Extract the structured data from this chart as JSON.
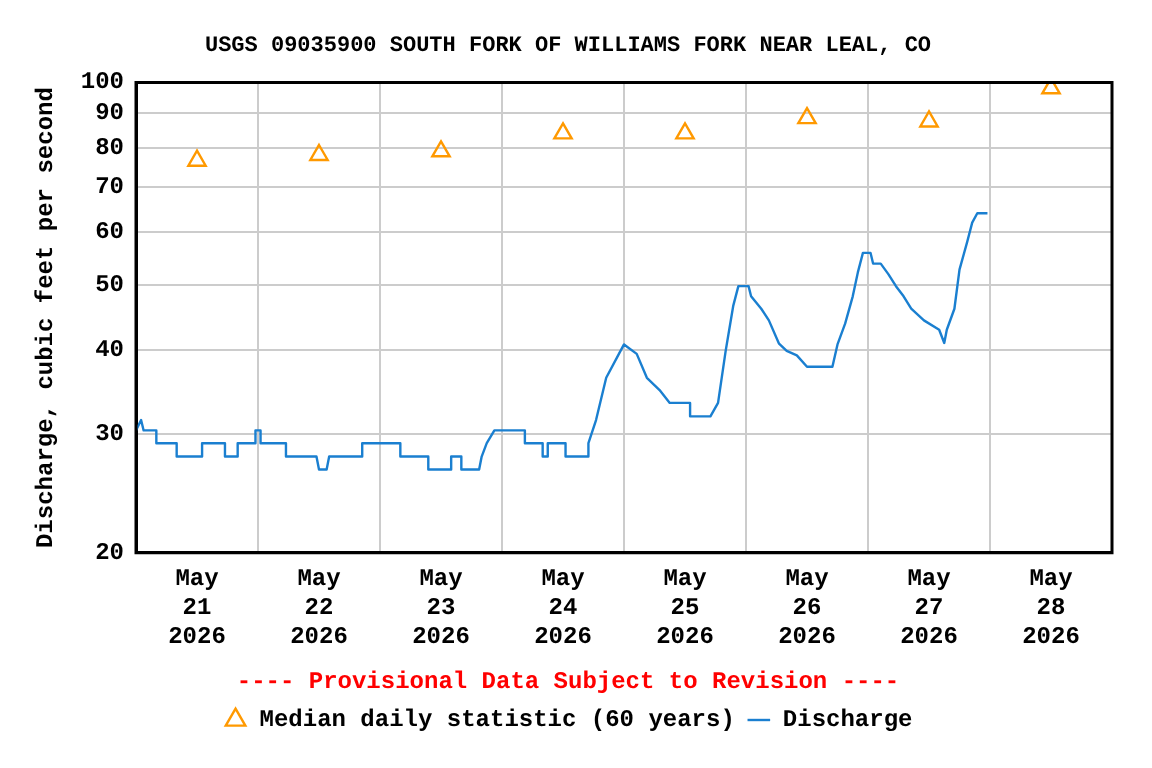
{
  "chart_data": {
    "type": "line",
    "title": "USGS 09035900 SOUTH FORK OF WILLIAMS FORK NEAR LEAL, CO",
    "ylabel": "Discharge, cubic feet per second",
    "annotations": [
      "---- Provisional Data Subject to Revision ----"
    ],
    "log": "y",
    "grid": true,
    "legend": "bottom",
    "xlim": [
      "2026-05-21",
      "2026-05-29"
    ],
    "xticks": [
      {
        "value": "2026-05-21T12:00",
        "label": "May 21 2026"
      },
      {
        "value": "2026-05-22",
        "label": null
      },
      {
        "value": "2026-05-22T12:00",
        "label": "May 22 2026"
      },
      {
        "value": "2026-05-23",
        "label": null
      },
      {
        "value": "2026-05-23T12:00",
        "label": "May 23 2026"
      },
      {
        "value": "2026-05-24",
        "label": null
      },
      {
        "value": "2026-05-24T12:00",
        "label": "May 24 2026"
      },
      {
        "value": "2026-05-25",
        "label": null
      },
      {
        "value": "2026-05-25T12:00",
        "label": "May 25 2026"
      },
      {
        "value": "2026-05-26",
        "label": null
      },
      {
        "value": "2026-05-26T12:00",
        "label": "May 26 2026"
      },
      {
        "value": "2026-05-27",
        "label": null
      },
      {
        "value": "2026-05-27T12:00",
        "label": "May 27 2026"
      },
      {
        "value": "2026-05-28",
        "label": null
      },
      {
        "value": "2026-05-28T12:00",
        "label": "May 28 2026"
      }
    ],
    "ylim": [
      20,
      100
    ],
    "yticks": [
      20,
      30,
      40,
      50,
      60,
      70,
      80,
      90,
      100
    ],
    "series": [
      {
        "name": "Median daily statistic (60 years)",
        "type": "scatter",
        "marker": "triangle",
        "color": "#ff9900",
        "x": [
          "2026-05-21T12:00",
          "2026-05-22T12:00",
          "2026-05-23T12:00",
          "2026-05-24T12:00",
          "2026-05-25T12:00",
          "2026-05-26T12:00",
          "2026-05-27T12:00",
          "2026-05-28T12:00"
        ],
        "values": [
          76.5,
          78,
          79,
          84,
          84,
          88.5,
          87.5,
          98
        ]
      },
      {
        "name": "Discharge",
        "type": "line",
        "marker": "none",
        "color": "#1a7fd0",
        "x": [
          "2026-05-21T00:00",
          "2026-05-21T01:00",
          "2026-05-21T01:30",
          "2026-05-21T04:00",
          "2026-05-21T04:00",
          "2026-05-21T08:00",
          "2026-05-21T08:00",
          "2026-05-21T13:00",
          "2026-05-21T13:00",
          "2026-05-21T17:30",
          "2026-05-21T17:30",
          "2026-05-21T20:00",
          "2026-05-21T20:00",
          "2026-05-21T23:30",
          "2026-05-21T23:30",
          "2026-05-22T00:30",
          "2026-05-22T00:30",
          "2026-05-22T05:30",
          "2026-05-22T05:30",
          "2026-05-22T11:30",
          "2026-05-22T12:00",
          "2026-05-22T13:30",
          "2026-05-22T14:00",
          "2026-05-22T20:30",
          "2026-05-22T20:30",
          "2026-05-23T04:00",
          "2026-05-23T04:00",
          "2026-05-23T09:30",
          "2026-05-23T09:30",
          "2026-05-23T14:00",
          "2026-05-23T14:00",
          "2026-05-23T16:00",
          "2026-05-23T16:00",
          "2026-05-23T19:30",
          "2026-05-23T20:00",
          "2026-05-23T21:00",
          "2026-05-23T22:30",
          "2026-05-24T04:30",
          "2026-05-24T04:30",
          "2026-05-24T08:00",
          "2026-05-24T08:00",
          "2026-05-24T09:00",
          "2026-05-24T09:00",
          "2026-05-24T12:30",
          "2026-05-24T12:30",
          "2026-05-24T17:00",
          "2026-05-24T17:00",
          "2026-05-24T18:30",
          "2026-05-24T20:30",
          "2026-05-24T23:00",
          "2026-05-25T00:00",
          "2026-05-25T02:30",
          "2026-05-25T04:30",
          "2026-05-25T07:00",
          "2026-05-25T09:00",
          "2026-05-25T13:00",
          "2026-05-25T13:00",
          "2026-05-25T17:00",
          "2026-05-25T18:30",
          "2026-05-25T20:00",
          "2026-05-25T21:30",
          "2026-05-25T22:30",
          "2026-05-26T00:30",
          "2026-05-26T01:00",
          "2026-05-26T03:00",
          "2026-05-26T04:30",
          "2026-05-26T06:30",
          "2026-05-26T08:00",
          "2026-05-26T10:00",
          "2026-05-26T12:00",
          "2026-05-26T17:00",
          "2026-05-26T18:00",
          "2026-05-26T19:30",
          "2026-05-26T21:00",
          "2026-05-26T22:00",
          "2026-05-26T23:00",
          "2026-05-27T00:30",
          "2026-05-27T01:00",
          "2026-05-27T02:30",
          "2026-05-27T04:00",
          "2026-05-27T05:30",
          "2026-05-27T07:00",
          "2026-05-27T08:30",
          "2026-05-27T11:00",
          "2026-05-27T14:00",
          "2026-05-27T15:00",
          "2026-05-27T15:30",
          "2026-05-27T17:00",
          "2026-05-27T18:00",
          "2026-05-27T19:30",
          "2026-05-27T20:30",
          "2026-05-27T21:30",
          "2026-05-27T23:30"
        ],
        "values": [
          30.4,
          31.5,
          30.4,
          30.4,
          29.1,
          29.1,
          27.8,
          27.8,
          29.1,
          29.1,
          27.8,
          27.8,
          29.1,
          29.1,
          30.4,
          30.4,
          29.1,
          29.1,
          27.8,
          27.8,
          26.6,
          26.6,
          27.8,
          27.8,
          29.1,
          29.1,
          27.8,
          27.8,
          26.6,
          26.6,
          27.8,
          27.8,
          26.6,
          26.6,
          27.8,
          29.1,
          30.4,
          30.4,
          29.1,
          29.1,
          27.8,
          27.8,
          29.1,
          29.1,
          27.8,
          27.8,
          29.1,
          31.5,
          36.4,
          39.5,
          40.8,
          39.5,
          36.4,
          34.9,
          33.4,
          33.4,
          31.9,
          31.9,
          33.4,
          39.9,
          46.6,
          49.8,
          49.8,
          48.1,
          46.1,
          44.3,
          40.9,
          39.9,
          39.3,
          37.8,
          37.8,
          40.8,
          43.8,
          48.1,
          52.2,
          55.8,
          55.8,
          53.8,
          53.8,
          51.9,
          49.8,
          48.1,
          46.1,
          44.3,
          42.9,
          41,
          42.9,
          46.1,
          52.7,
          57.9,
          61.9,
          63.9,
          63.9
        ]
      }
    ]
  }
}
